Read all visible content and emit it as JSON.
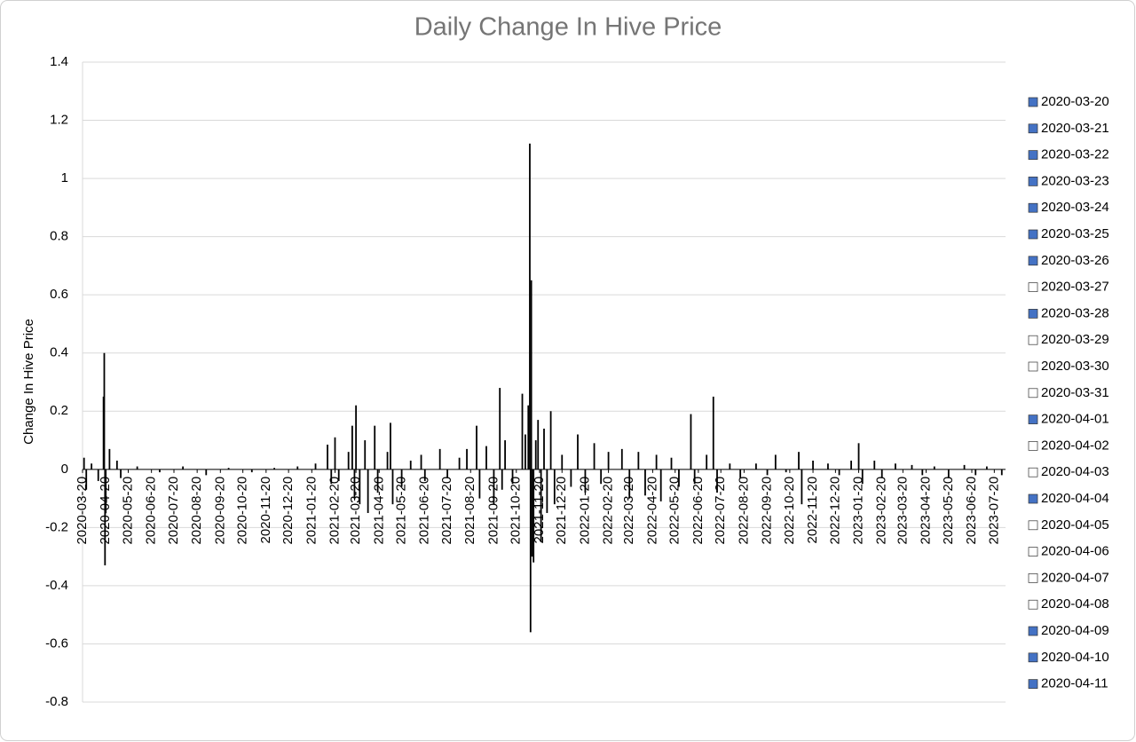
{
  "chart_data": {
    "type": "bar",
    "title": "Daily Change In Hive Price",
    "y_label": "Change In Hive Price",
    "ylim": [
      -0.8,
      1.4
    ],
    "yticks": [
      1.4,
      1.2,
      1,
      0.8,
      0.6,
      0.4,
      0.2,
      0,
      -0.2,
      -0.4,
      -0.6,
      -0.8
    ],
    "grid": true,
    "xlim": [
      "2020-03-20",
      "2023-08-04"
    ],
    "xticks": [
      "2020-03-20",
      "2020-04-20",
      "2020-05-20",
      "2020-06-20",
      "2020-07-20",
      "2020-08-20",
      "2020-09-20",
      "2020-10-20",
      "2020-11-20",
      "2020-12-20",
      "2021-01-20",
      "2021-02-20",
      "2021-03-20",
      "2021-04-20",
      "2021-05-20",
      "2021-06-20",
      "2021-07-20",
      "2021-08-20",
      "2021-09-20",
      "2021-10-20",
      "2021-11-20",
      "2021-12-20",
      "2022-01-20",
      "2022-02-20",
      "2022-03-20",
      "2022-04-20",
      "2022-05-20",
      "2022-06-20",
      "2022-07-20",
      "2022-08-20",
      "2022-09-20",
      "2022-10-20",
      "2022-11-20",
      "2022-12-20",
      "2023-01-20",
      "2023-02-20",
      "2023-03-20",
      "2023-04-20",
      "2023-05-20",
      "2023-06-20",
      "2023-07-20"
    ],
    "color": "#000000",
    "x": [
      "2020-03-22",
      "2020-03-25",
      "2020-04-01",
      "2020-04-10",
      "2020-04-17",
      "2020-04-18",
      "2020-04-19",
      "2020-04-20",
      "2020-04-25",
      "2020-05-05",
      "2020-05-10",
      "2020-06-01",
      "2020-07-01",
      "2020-08-01",
      "2020-09-01",
      "2020-10-01",
      "2020-11-01",
      "2020-12-01",
      "2021-01-01",
      "2021-01-25",
      "2021-02-10",
      "2021-02-15",
      "2021-02-20",
      "2021-02-25",
      "2021-03-10",
      "2021-03-15",
      "2021-03-18",
      "2021-03-20",
      "2021-03-25",
      "2021-04-01",
      "2021-04-05",
      "2021-04-14",
      "2021-04-18",
      "2021-05-01",
      "2021-05-05",
      "2021-05-08",
      "2021-05-20",
      "2021-06-01",
      "2021-06-15",
      "2021-06-20",
      "2021-07-10",
      "2021-07-20",
      "2021-08-05",
      "2021-08-15",
      "2021-08-28",
      "2021-09-01",
      "2021-09-10",
      "2021-09-20",
      "2021-09-28",
      "2021-10-01",
      "2021-10-05",
      "2021-10-15",
      "2021-10-28",
      "2021-11-01",
      "2021-11-05",
      "2021-11-07",
      "2021-11-08",
      "2021-11-09",
      "2021-11-10",
      "2021-11-12",
      "2021-11-15",
      "2021-11-18",
      "2021-11-22",
      "2021-11-26",
      "2021-11-30",
      "2021-12-05",
      "2021-12-10",
      "2021-12-20",
      "2022-01-01",
      "2022-01-10",
      "2022-01-20",
      "2022-02-01",
      "2022-02-10",
      "2022-02-20",
      "2022-03-10",
      "2022-03-20",
      "2022-04-01",
      "2022-04-10",
      "2022-04-25",
      "2022-05-01",
      "2022-05-15",
      "2022-05-25",
      "2022-06-10",
      "2022-06-15",
      "2022-07-01",
      "2022-07-10",
      "2022-07-15",
      "2022-08-01",
      "2022-08-15",
      "2022-09-05",
      "2022-09-20",
      "2022-10-01",
      "2022-10-15",
      "2022-11-01",
      "2022-11-05",
      "2022-11-20",
      "2022-12-10",
      "2022-12-25",
      "2023-01-10",
      "2023-01-20",
      "2023-01-25",
      "2023-02-10",
      "2023-02-20",
      "2023-03-10",
      "2023-04-01",
      "2023-04-15",
      "2023-05-01",
      "2023-05-20",
      "2023-06-10",
      "2023-06-25",
      "2023-07-10",
      "2023-07-30"
    ],
    "values": [
      0.04,
      -0.07,
      0.02,
      -0.04,
      0.25,
      0.4,
      -0.33,
      -0.15,
      0.07,
      0.03,
      -0.03,
      0.01,
      -0.01,
      0.01,
      -0.02,
      0.005,
      -0.01,
      0.005,
      0.01,
      0.02,
      0.085,
      -0.05,
      0.11,
      -0.04,
      0.06,
      0.15,
      -0.1,
      0.22,
      -0.12,
      0.1,
      -0.15,
      0.15,
      -0.08,
      0.06,
      0.16,
      -0.12,
      -0.06,
      0.03,
      0.05,
      -0.04,
      0.07,
      -0.03,
      0.04,
      0.07,
      0.15,
      -0.1,
      0.08,
      -0.12,
      0.28,
      -0.07,
      0.1,
      -0.05,
      0.26,
      0.12,
      0.22,
      1.12,
      -0.56,
      0.65,
      -0.3,
      -0.32,
      0.1,
      0.17,
      -0.25,
      0.14,
      -0.15,
      0.2,
      -0.12,
      0.05,
      -0.06,
      0.12,
      -0.08,
      0.09,
      -0.05,
      0.06,
      0.07,
      -0.1,
      0.06,
      -0.09,
      0.05,
      -0.11,
      0.04,
      -0.06,
      0.19,
      -0.05,
      0.05,
      0.25,
      -0.08,
      0.02,
      -0.03,
      0.02,
      -0.02,
      0.05,
      -0.01,
      0.06,
      -0.12,
      0.03,
      0.02,
      -0.02,
      0.03,
      0.09,
      -0.05,
      0.03,
      -0.03,
      0.02,
      0.015,
      -0.02,
      0.01,
      -0.03,
      0.015,
      -0.02,
      0.01,
      -0.02
    ],
    "legend": [
      {
        "name": "2020-03-20",
        "color": "#4472c4"
      },
      {
        "name": "2020-03-21",
        "color": "#4472c4"
      },
      {
        "name": "2020-03-22",
        "color": "#4472c4"
      },
      {
        "name": "2020-03-23",
        "color": "#4472c4"
      },
      {
        "name": "2020-03-24",
        "color": "#4472c4"
      },
      {
        "name": "2020-03-25",
        "color": "#4472c4"
      },
      {
        "name": "2020-03-26",
        "color": "#4472c4"
      },
      {
        "name": "2020-03-27",
        "color": "#ffffff"
      },
      {
        "name": "2020-03-28",
        "color": "#4472c4"
      },
      {
        "name": "2020-03-29",
        "color": "#ffffff"
      },
      {
        "name": "2020-03-30",
        "color": "#ffffff"
      },
      {
        "name": "2020-03-31",
        "color": "#ffffff"
      },
      {
        "name": "2020-04-01",
        "color": "#4472c4"
      },
      {
        "name": "2020-04-02",
        "color": "#ffffff"
      },
      {
        "name": "2020-04-03",
        "color": "#ffffff"
      },
      {
        "name": "2020-04-04",
        "color": "#4472c4"
      },
      {
        "name": "2020-04-05",
        "color": "#ffffff"
      },
      {
        "name": "2020-04-06",
        "color": "#ffffff"
      },
      {
        "name": "2020-04-07",
        "color": "#ffffff"
      },
      {
        "name": "2020-04-08",
        "color": "#ffffff"
      },
      {
        "name": "2020-04-09",
        "color": "#4472c4"
      },
      {
        "name": "2020-04-10",
        "color": "#4472c4"
      },
      {
        "name": "2020-04-11",
        "color": "#4472c4"
      }
    ]
  }
}
